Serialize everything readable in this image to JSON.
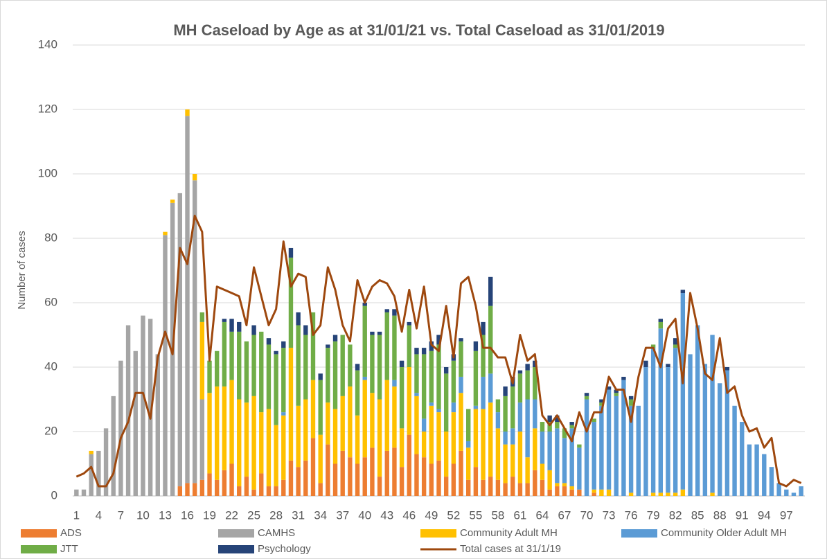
{
  "chart_data": {
    "type": "bar",
    "stacked": true,
    "title": "MH Caseload by Age as at 31/01/21 vs. Total Caseload as 31/01/2019",
    "y_label": "Number of cases",
    "categories": [
      "1",
      null,
      null,
      "4",
      null,
      null,
      "7",
      null,
      null,
      "10",
      null,
      null,
      "13",
      null,
      null,
      "16",
      null,
      null,
      "19",
      null,
      null,
      "22",
      null,
      null,
      "25",
      null,
      null,
      "28",
      null,
      null,
      "31",
      null,
      null,
      "34",
      null,
      null,
      "37",
      null,
      null,
      "40",
      null,
      null,
      "43",
      null,
      null,
      "46",
      null,
      null,
      "49",
      null,
      null,
      "52",
      null,
      null,
      "55",
      null,
      null,
      "58",
      null,
      null,
      "61",
      null,
      null,
      "64",
      null,
      null,
      "67",
      null,
      null,
      "70",
      null,
      null,
      "73",
      null,
      null,
      "76",
      null,
      null,
      "79",
      null,
      null,
      "82",
      null,
      null,
      "85",
      null,
      null,
      "88",
      null,
      null,
      "91",
      null,
      null,
      "94",
      null,
      null,
      "97",
      null,
      null
    ],
    "ylim": [
      0,
      140
    ],
    "yticks": [
      0,
      20,
      40,
      60,
      80,
      100,
      120,
      140
    ],
    "grid": true,
    "legend": "bottom",
    "series": [
      {
        "name": "ADS",
        "color": "#ed7d31",
        "type": "bar",
        "values": [
          0,
          0,
          0,
          0,
          0,
          0,
          0,
          0,
          0,
          0,
          0,
          0,
          0,
          0,
          3,
          4,
          4,
          5,
          7,
          5,
          8,
          10,
          3,
          6,
          2,
          7,
          3,
          3,
          5,
          11,
          9,
          11,
          18,
          4,
          16,
          10,
          14,
          12,
          10,
          12,
          15,
          6,
          14,
          15,
          9,
          19,
          13,
          12,
          10,
          11,
          6,
          10,
          14,
          5,
          9,
          5,
          6,
          5,
          4,
          6,
          4,
          4,
          8,
          5,
          2,
          3,
          3,
          2,
          2,
          0,
          1,
          0,
          0,
          0,
          0,
          0,
          0,
          0,
          0,
          0,
          0,
          0,
          0,
          0,
          0,
          0,
          0,
          0,
          0,
          0,
          0,
          0,
          0,
          0,
          0,
          0,
          0,
          0,
          0
        ]
      },
      {
        "name": "CAMHS",
        "color": "#a5a5a5",
        "type": "bar",
        "values": [
          2,
          2,
          13,
          14,
          21,
          31,
          42,
          53,
          45,
          56,
          55,
          44,
          81,
          91,
          91,
          114,
          94,
          25,
          0,
          0,
          0,
          0,
          0,
          0,
          0,
          0,
          0,
          0,
          0,
          0,
          0,
          0,
          0,
          0,
          0,
          0,
          0,
          0,
          0,
          0,
          0,
          0,
          0,
          0,
          0,
          0,
          0,
          0,
          0,
          0,
          0,
          0,
          0,
          0,
          0,
          0,
          0,
          0,
          0,
          0,
          0,
          0,
          0,
          0,
          0,
          0,
          0,
          0,
          0,
          0,
          0,
          0,
          0,
          0,
          0,
          0,
          0,
          0,
          0,
          0,
          0,
          0,
          0,
          0,
          0,
          0,
          0,
          0,
          0,
          0,
          0,
          0,
          0,
          0,
          0,
          0,
          0,
          0,
          0
        ]
      },
      {
        "name": "Community Adult MH",
        "color": "#ffc000",
        "type": "bar",
        "values": [
          0,
          0,
          1,
          0,
          0,
          0,
          0,
          0,
          0,
          0,
          0,
          0,
          1,
          1,
          0,
          2,
          2,
          24,
          25,
          29,
          26,
          26,
          27,
          23,
          29,
          19,
          24,
          19,
          20,
          35,
          19,
          19,
          18,
          15,
          13,
          17,
          17,
          22,
          15,
          24,
          17,
          24,
          22,
          19,
          12,
          21,
          18,
          8,
          18,
          15,
          14,
          16,
          18,
          10,
          18,
          22,
          23,
          16,
          12,
          10,
          16,
          8,
          13,
          5,
          6,
          1,
          1,
          1,
          0,
          0,
          1,
          2,
          2,
          0,
          0,
          1,
          0,
          0,
          1,
          1,
          1,
          1,
          2,
          0,
          0,
          0,
          1,
          0,
          0,
          0,
          0,
          0,
          0,
          0,
          0,
          0,
          0,
          0,
          0
        ]
      },
      {
        "name": "Community Older Adult MH",
        "color": "#5b9bd5",
        "type": "bar",
        "values": [
          0,
          0,
          0,
          0,
          0,
          0,
          0,
          0,
          0,
          0,
          0,
          0,
          0,
          0,
          0,
          0,
          0,
          0,
          0,
          0,
          0,
          0,
          0,
          0,
          0,
          0,
          0,
          0,
          1,
          0,
          0,
          0,
          0,
          0,
          0,
          0,
          0,
          0,
          0,
          1,
          0,
          0,
          0,
          2,
          0,
          0,
          1,
          4,
          1,
          1,
          0,
          3,
          5,
          2,
          1,
          10,
          9,
          5,
          4,
          5,
          9,
          18,
          9,
          10,
          12,
          17,
          14,
          18,
          13,
          30,
          21,
          26,
          31,
          31,
          36,
          27,
          28,
          40,
          45,
          51,
          39,
          45,
          61,
          44,
          53,
          41,
          49,
          35,
          39,
          28,
          23,
          16,
          16,
          13,
          9,
          4,
          2,
          1,
          3
        ]
      },
      {
        "name": "JTT",
        "color": "#70ad47",
        "type": "bar",
        "values": [
          0,
          0,
          0,
          0,
          0,
          0,
          0,
          0,
          0,
          0,
          0,
          0,
          0,
          0,
          0,
          0,
          0,
          3,
          10,
          11,
          20,
          15,
          21,
          19,
          19,
          25,
          20,
          22,
          20,
          28,
          25,
          20,
          21,
          17,
          17,
          21,
          19,
          13,
          14,
          22,
          18,
          20,
          21,
          20,
          19,
          13,
          12,
          20,
          16,
          20,
          18,
          13,
          11,
          10,
          17,
          13,
          21,
          4,
          11,
          13,
          9,
          9,
          10,
          3,
          3,
          2,
          3,
          1,
          1,
          1,
          1,
          1,
          0,
          1,
          0,
          2,
          0,
          0,
          1,
          2,
          0,
          1,
          0,
          0,
          0,
          0,
          0,
          0,
          0,
          0,
          0,
          0,
          0,
          0,
          0,
          0,
          0,
          0,
          0
        ]
      },
      {
        "name": "Psychology",
        "color": "#264478",
        "type": "bar",
        "values": [
          0,
          0,
          0,
          0,
          0,
          0,
          0,
          0,
          0,
          0,
          0,
          0,
          0,
          0,
          0,
          0,
          0,
          0,
          0,
          0,
          1,
          4,
          3,
          0,
          3,
          0,
          2,
          1,
          2,
          3,
          4,
          3,
          0,
          2,
          1,
          2,
          0,
          0,
          2,
          1,
          1,
          1,
          1,
          2,
          2,
          1,
          2,
          2,
          3,
          3,
          2,
          2,
          1,
          0,
          3,
          4,
          9,
          0,
          3,
          3,
          1,
          2,
          2,
          0,
          2,
          2,
          0,
          1,
          0,
          1,
          0,
          1,
          1,
          1,
          1,
          1,
          0,
          2,
          0,
          1,
          1,
          2,
          1,
          0,
          0,
          0,
          0,
          0,
          1,
          0,
          0,
          0,
          0,
          0,
          0,
          0,
          0,
          0,
          0
        ]
      },
      {
        "name": "Total cases at 31/1/19",
        "color": "#9e480e",
        "type": "line",
        "values": [
          6,
          7,
          9,
          3,
          3,
          7,
          18,
          23,
          32,
          32,
          24,
          43,
          51,
          44,
          77,
          72,
          87,
          82,
          42,
          65,
          64,
          63,
          62,
          53,
          71,
          62,
          53,
          58,
          79,
          65,
          69,
          68,
          50,
          53,
          71,
          64,
          53,
          48,
          67,
          60,
          65,
          67,
          66,
          62,
          51,
          64,
          52,
          65,
          47,
          45,
          59,
          43,
          66,
          68,
          59,
          46,
          46,
          43,
          43,
          35,
          50,
          42,
          44,
          25,
          22,
          25,
          21,
          17,
          26,
          20,
          26,
          26,
          37,
          33,
          33,
          23,
          37,
          46,
          46,
          40,
          52,
          55,
          35,
          63,
          52,
          38,
          36,
          49,
          32,
          34,
          25,
          20,
          21,
          15,
          18,
          4,
          3,
          5,
          4
        ]
      }
    ]
  }
}
